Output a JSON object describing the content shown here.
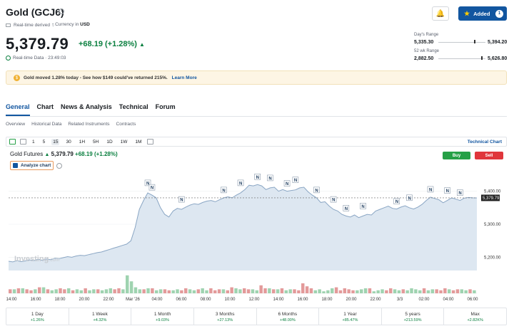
{
  "header": {
    "title": "Gold (GCJ6)",
    "realtime_derived": "Real-time derived",
    "currency_label": "Currency in",
    "currency": "USD",
    "added_label": "Added",
    "added_count": "1"
  },
  "quote": {
    "price": "5,379.79",
    "change": "+68.19 (+1.28%)",
    "realtime_time": "Real-time Data · 23:49:03"
  },
  "ranges": {
    "day_label": "Day's Range",
    "day_low": "5,335.30",
    "day_high": "5,394.20",
    "day_position": 0.75,
    "week52_label": "52 wk Range",
    "week52_low": "2,882.50",
    "week52_high": "5,626.80",
    "week52_position": 0.91
  },
  "banner": {
    "text": "Gold moved 1.28% today - See how $149 could've returned 215%.",
    "link": "Learn More"
  },
  "tabs": [
    "General",
    "Chart",
    "News & Analysis",
    "Technical",
    "Forum"
  ],
  "subtabs": [
    "Overview",
    "Historical Data",
    "Related Instruments",
    "Contracts"
  ],
  "toolbar": {
    "intervals": [
      "1",
      "5",
      "15",
      "30",
      "1H",
      "5H",
      "1D",
      "1W",
      "1M"
    ],
    "active_interval": "15",
    "technical_chart": "Technical Chart"
  },
  "chart_header": {
    "name": "Gold Futures",
    "price": "5,379.79",
    "change": "+68.19 (+1.28%)",
    "analyze": "Analyze chart",
    "buy": "Buy",
    "sell": "Sell",
    "watermark": "Investing",
    "watermark_suffix": ".com"
  },
  "chart_data": {
    "type": "area",
    "x_labels": [
      "14:00",
      "16:00",
      "18:00",
      "20:00",
      "22:00",
      "Mar '26",
      "04:00",
      "06:00",
      "08:00",
      "10:00",
      "12:00",
      "14:00",
      "16:00",
      "18:00",
      "20:00",
      "22:00",
      "3/3",
      "02:00",
      "04:00",
      "06:00"
    ],
    "y_ticks": [
      5200,
      5300,
      5400
    ],
    "ylim": [
      5160,
      5440
    ],
    "last_price_label": "5,379.79",
    "accent": "#1256a0",
    "values": [
      5188,
      5186,
      5190,
      5187,
      5189,
      5192,
      5190,
      5194,
      5191,
      5195,
      5193,
      5197,
      5196,
      5199,
      5202,
      5200,
      5204,
      5206,
      5205,
      5208,
      5211,
      5214,
      5216,
      5220,
      5224,
      5228,
      5232,
      5236,
      5240,
      5250,
      5290,
      5345,
      5372,
      5395,
      5388,
      5380,
      5350,
      5330,
      5322,
      5340,
      5348,
      5345,
      5352,
      5358,
      5362,
      5360,
      5366,
      5370,
      5372,
      5368,
      5374,
      5380,
      5383,
      5380,
      5388,
      5395,
      5405,
      5418,
      5416,
      5420,
      5416,
      5405,
      5410,
      5412,
      5400,
      5405,
      5400,
      5402,
      5404,
      5410,
      5412,
      5398,
      5388,
      5380,
      5366,
      5368,
      5355,
      5345,
      5340,
      5330,
      5325,
      5322,
      5328,
      5320,
      5325,
      5330,
      5328,
      5340,
      5345,
      5350,
      5355,
      5348,
      5346,
      5352,
      5356,
      5350,
      5346,
      5352,
      5360,
      5372,
      5382,
      5378,
      5374,
      5365,
      5372,
      5380,
      5376,
      5372,
      5379,
      5381,
      5380,
      5379.79
    ],
    "volume_up": [
      3,
      4,
      2,
      5,
      3,
      2,
      4,
      3,
      6,
      2,
      3,
      4,
      2,
      3,
      5,
      2,
      4,
      3,
      2,
      3,
      4,
      2,
      3,
      4,
      5,
      3,
      2,
      4,
      18,
      12,
      6,
      4,
      3,
      5,
      2,
      3,
      4,
      3,
      2,
      3,
      4,
      2,
      3,
      4,
      3,
      2,
      5,
      3,
      4,
      2,
      3,
      4,
      2,
      3,
      5,
      4,
      3,
      2,
      4,
      3,
      6,
      4,
      5,
      3,
      4,
      2,
      3,
      4,
      3,
      2,
      4,
      3,
      2,
      3,
      4,
      2,
      3,
      5,
      3,
      2,
      4,
      3,
      2,
      3,
      4,
      5,
      3,
      2,
      3,
      4,
      2,
      3,
      4,
      3,
      2,
      3,
      5,
      4,
      3,
      2,
      3,
      4,
      3,
      2,
      3,
      4,
      2,
      3,
      4,
      3,
      2,
      3
    ],
    "volume_down": [
      4,
      3,
      5,
      2,
      4,
      3,
      2,
      6,
      3,
      4,
      2,
      3,
      5,
      4,
      2,
      3,
      4,
      2,
      5,
      3,
      2,
      4,
      3,
      2,
      3,
      4,
      5,
      3,
      12,
      8,
      5,
      3,
      4,
      2,
      5,
      3,
      2,
      4,
      3,
      2,
      4,
      3,
      5,
      2,
      3,
      4,
      2,
      3,
      5,
      3,
      4,
      2,
      3,
      6,
      4,
      3,
      5,
      4,
      2,
      3,
      8,
      5,
      3,
      4,
      2,
      5,
      3,
      2,
      4,
      3,
      10,
      7,
      5,
      3,
      4,
      2,
      3,
      4,
      6,
      3,
      5,
      4,
      3,
      2,
      4,
      3,
      5,
      2,
      3,
      4,
      3,
      5,
      2,
      3,
      4,
      3,
      2,
      4,
      3,
      5,
      2,
      3,
      4,
      3,
      5,
      2,
      3,
      4,
      2,
      3,
      4,
      2
    ]
  },
  "markers": {
    "label": "N"
  },
  "periods": [
    {
      "label": "1 Day",
      "value": "+1.26%"
    },
    {
      "label": "1 Week",
      "value": "+4.32%"
    },
    {
      "label": "1 Month",
      "value": "+9.03%"
    },
    {
      "label": "3 Months",
      "value": "+27.13%"
    },
    {
      "label": "6 Months",
      "value": "+48.00%"
    },
    {
      "label": "1 Year",
      "value": "+85.47%"
    },
    {
      "label": "5 years",
      "value": "+213.59%"
    },
    {
      "label": "Max",
      "value": "+2.82K%"
    }
  ]
}
